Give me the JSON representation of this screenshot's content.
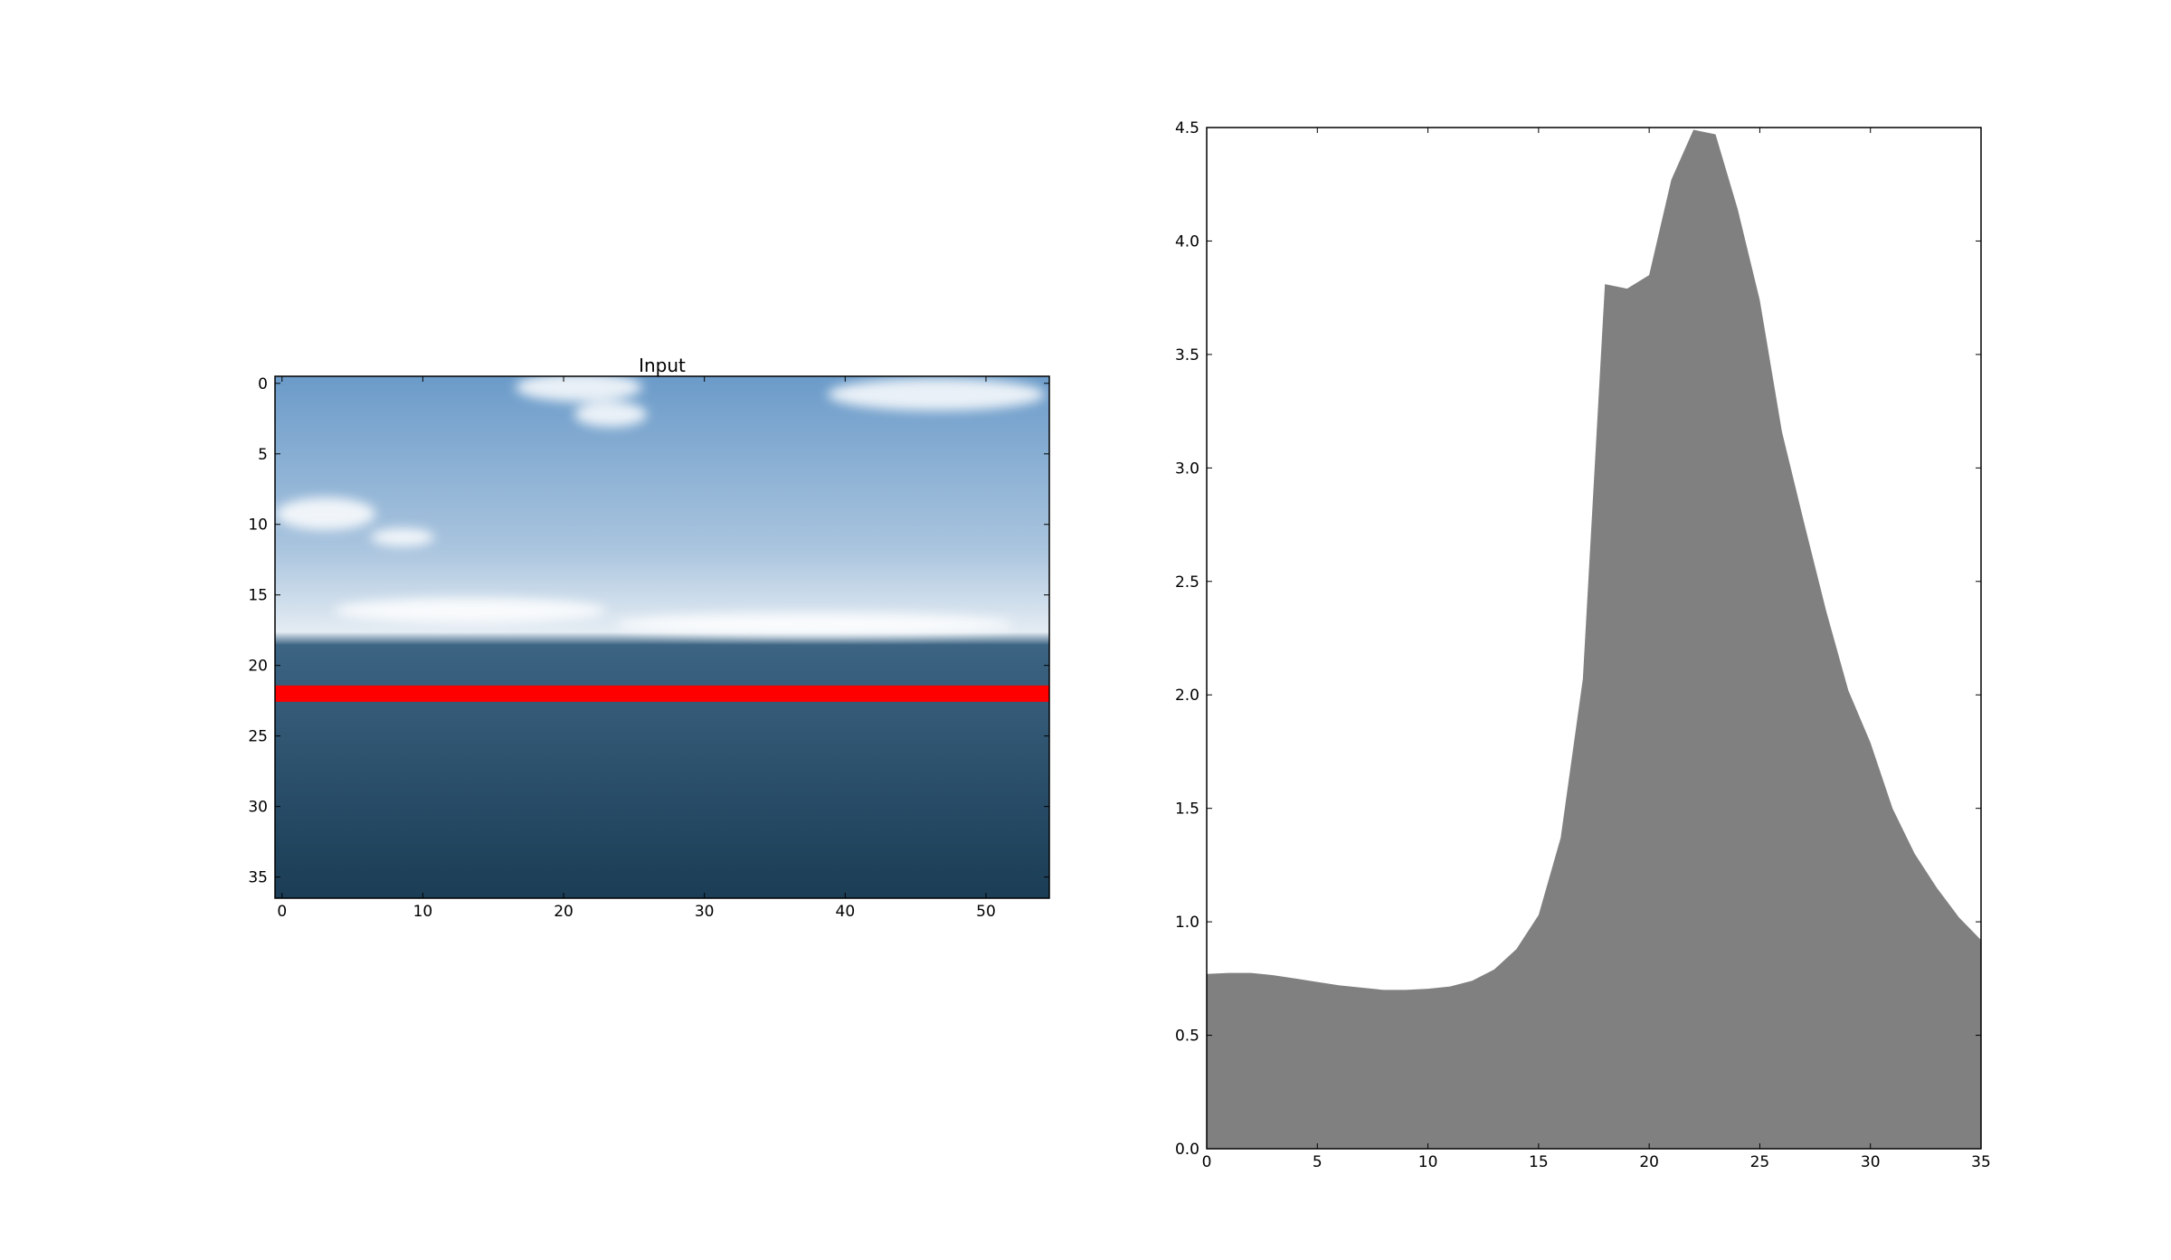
{
  "chart_data": [
    {
      "type": "image",
      "title": "Input",
      "x_ticks": [
        0,
        10,
        20,
        30,
        40,
        50
      ],
      "y_ticks": [
        0,
        5,
        10,
        15,
        20,
        25,
        30,
        35
      ],
      "xlim": [
        -0.5,
        54.5
      ],
      "ylim": [
        36.5,
        -0.5
      ],
      "highlight_row": 22,
      "highlight_color": "#ff0000",
      "colors": {
        "sky_top": "#6b9bc9",
        "sky_mid": "#a9c4de",
        "horizon_haze": "#e4ecf3",
        "water_top": "#3c6483",
        "water_bottom": "#1b3d55"
      }
    },
    {
      "type": "area",
      "title": "",
      "xlabel": "",
      "ylabel": "",
      "xlim": [
        0,
        35
      ],
      "ylim": [
        0,
        4.5
      ],
      "x_ticks": [
        0,
        5,
        10,
        15,
        20,
        25,
        30,
        35
      ],
      "y_ticks": [
        "0.0",
        "0.5",
        "1.0",
        "1.5",
        "2.0",
        "2.5",
        "3.0",
        "3.5",
        "4.0",
        "4.5"
      ],
      "fill_color": "#808080",
      "grid": false,
      "x": [
        0,
        1,
        2,
        3,
        4,
        5,
        6,
        7,
        8,
        9,
        10,
        11,
        12,
        13,
        14,
        15,
        16,
        17,
        18,
        19,
        20,
        21,
        22,
        23,
        24,
        25,
        26,
        27,
        28,
        29,
        30,
        31,
        32,
        33,
        34,
        35
      ],
      "y": [
        0.77,
        0.775,
        0.775,
        0.765,
        0.75,
        0.735,
        0.72,
        0.71,
        0.7,
        0.7,
        0.705,
        0.715,
        0.74,
        0.79,
        0.88,
        1.03,
        1.37,
        2.07,
        3.81,
        3.79,
        3.85,
        4.27,
        4.49,
        4.47,
        4.14,
        3.74,
        3.16,
        2.76,
        2.37,
        2.02,
        1.79,
        1.5,
        1.3,
        1.15,
        1.02,
        0.92
      ]
    }
  ]
}
